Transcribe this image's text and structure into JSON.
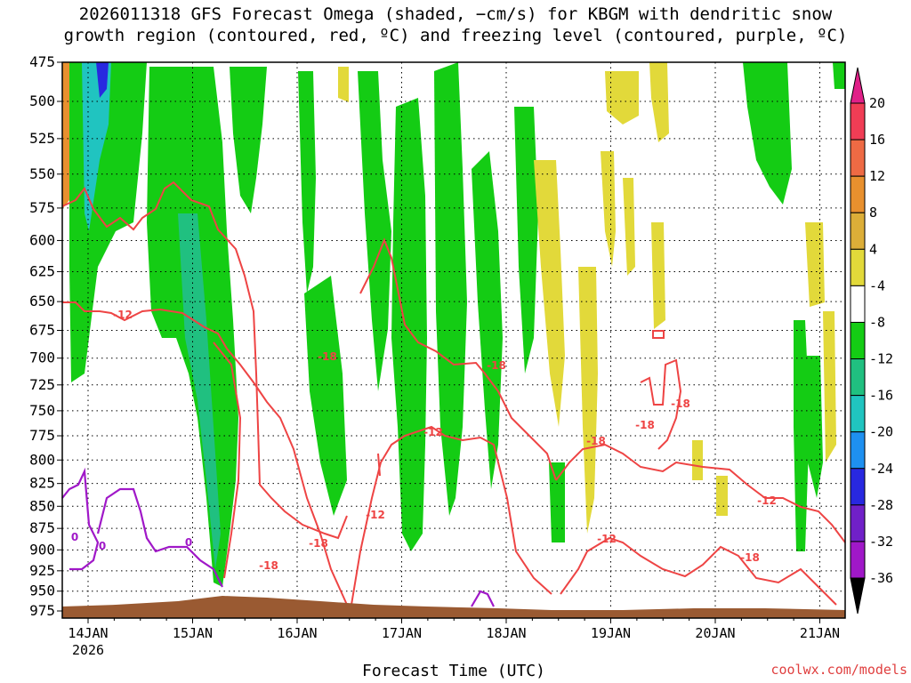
{
  "title_line1": "2026011318 GFS Forecast Omega (shaded, −cm/s) for KBGM with dendritic snow",
  "title_line2": "growth region (contoured, red, ºC) and freezing level (contoured, purple, ºC)",
  "xlabel": "Forecast Time (UTC)",
  "credit": "coolwx.com/models",
  "chart_data": {
    "type": "heatmap",
    "title": "2026011318 GFS Forecast Omega (shaded, −cm/s) for KBGM with dendritic snow growth region (contoured, red, ºC) and freezing level (contoured, purple, ºC)",
    "xlabel": "Forecast Time (UTC)",
    "ylabel": "",
    "y_axis": {
      "ticks": [
        475,
        500,
        525,
        550,
        575,
        600,
        625,
        650,
        675,
        700,
        725,
        750,
        775,
        800,
        825,
        850,
        875,
        900,
        925,
        950,
        975
      ],
      "range": [
        975,
        475
      ],
      "scale": "log-pressure"
    },
    "x_axis": {
      "ticks": [
        "14JAN",
        "15JAN",
        "16JAN",
        "17JAN",
        "18JAN",
        "19JAN",
        "20JAN",
        "21JAN"
      ],
      "subtick_label": "2026",
      "start": "2026-01-13T18Z",
      "end": "2026-01-21T12Z"
    },
    "grid": true,
    "colorbar": {
      "labels": [
        20,
        16,
        12,
        8,
        4,
        -4,
        -8,
        -12,
        -16,
        -20,
        -24,
        -28,
        -32,
        -36
      ],
      "colors": [
        "#f03d55",
        "#ee6a44",
        "#e8902e",
        "#dcae38",
        "#e2d93a",
        "#ffffff",
        "#14cc14",
        "#20c080",
        "#20c4c0",
        "#1e90f0",
        "#2828e0",
        "#7020c8",
        "#a018c8",
        "#a0a0a0"
      ],
      "top_arrow_color": "#e02088",
      "bottom_arrow_color": "#000000"
    },
    "contour_labels": {
      "dendritic_red": [
        "-12",
        "-18",
        "-18",
        "-12",
        "-12",
        "-18",
        "-18",
        "-18",
        "-18",
        "-18",
        "-12",
        "-12",
        "-18"
      ],
      "freezing_purple": [
        "0",
        "0",
        "0"
      ]
    }
  }
}
